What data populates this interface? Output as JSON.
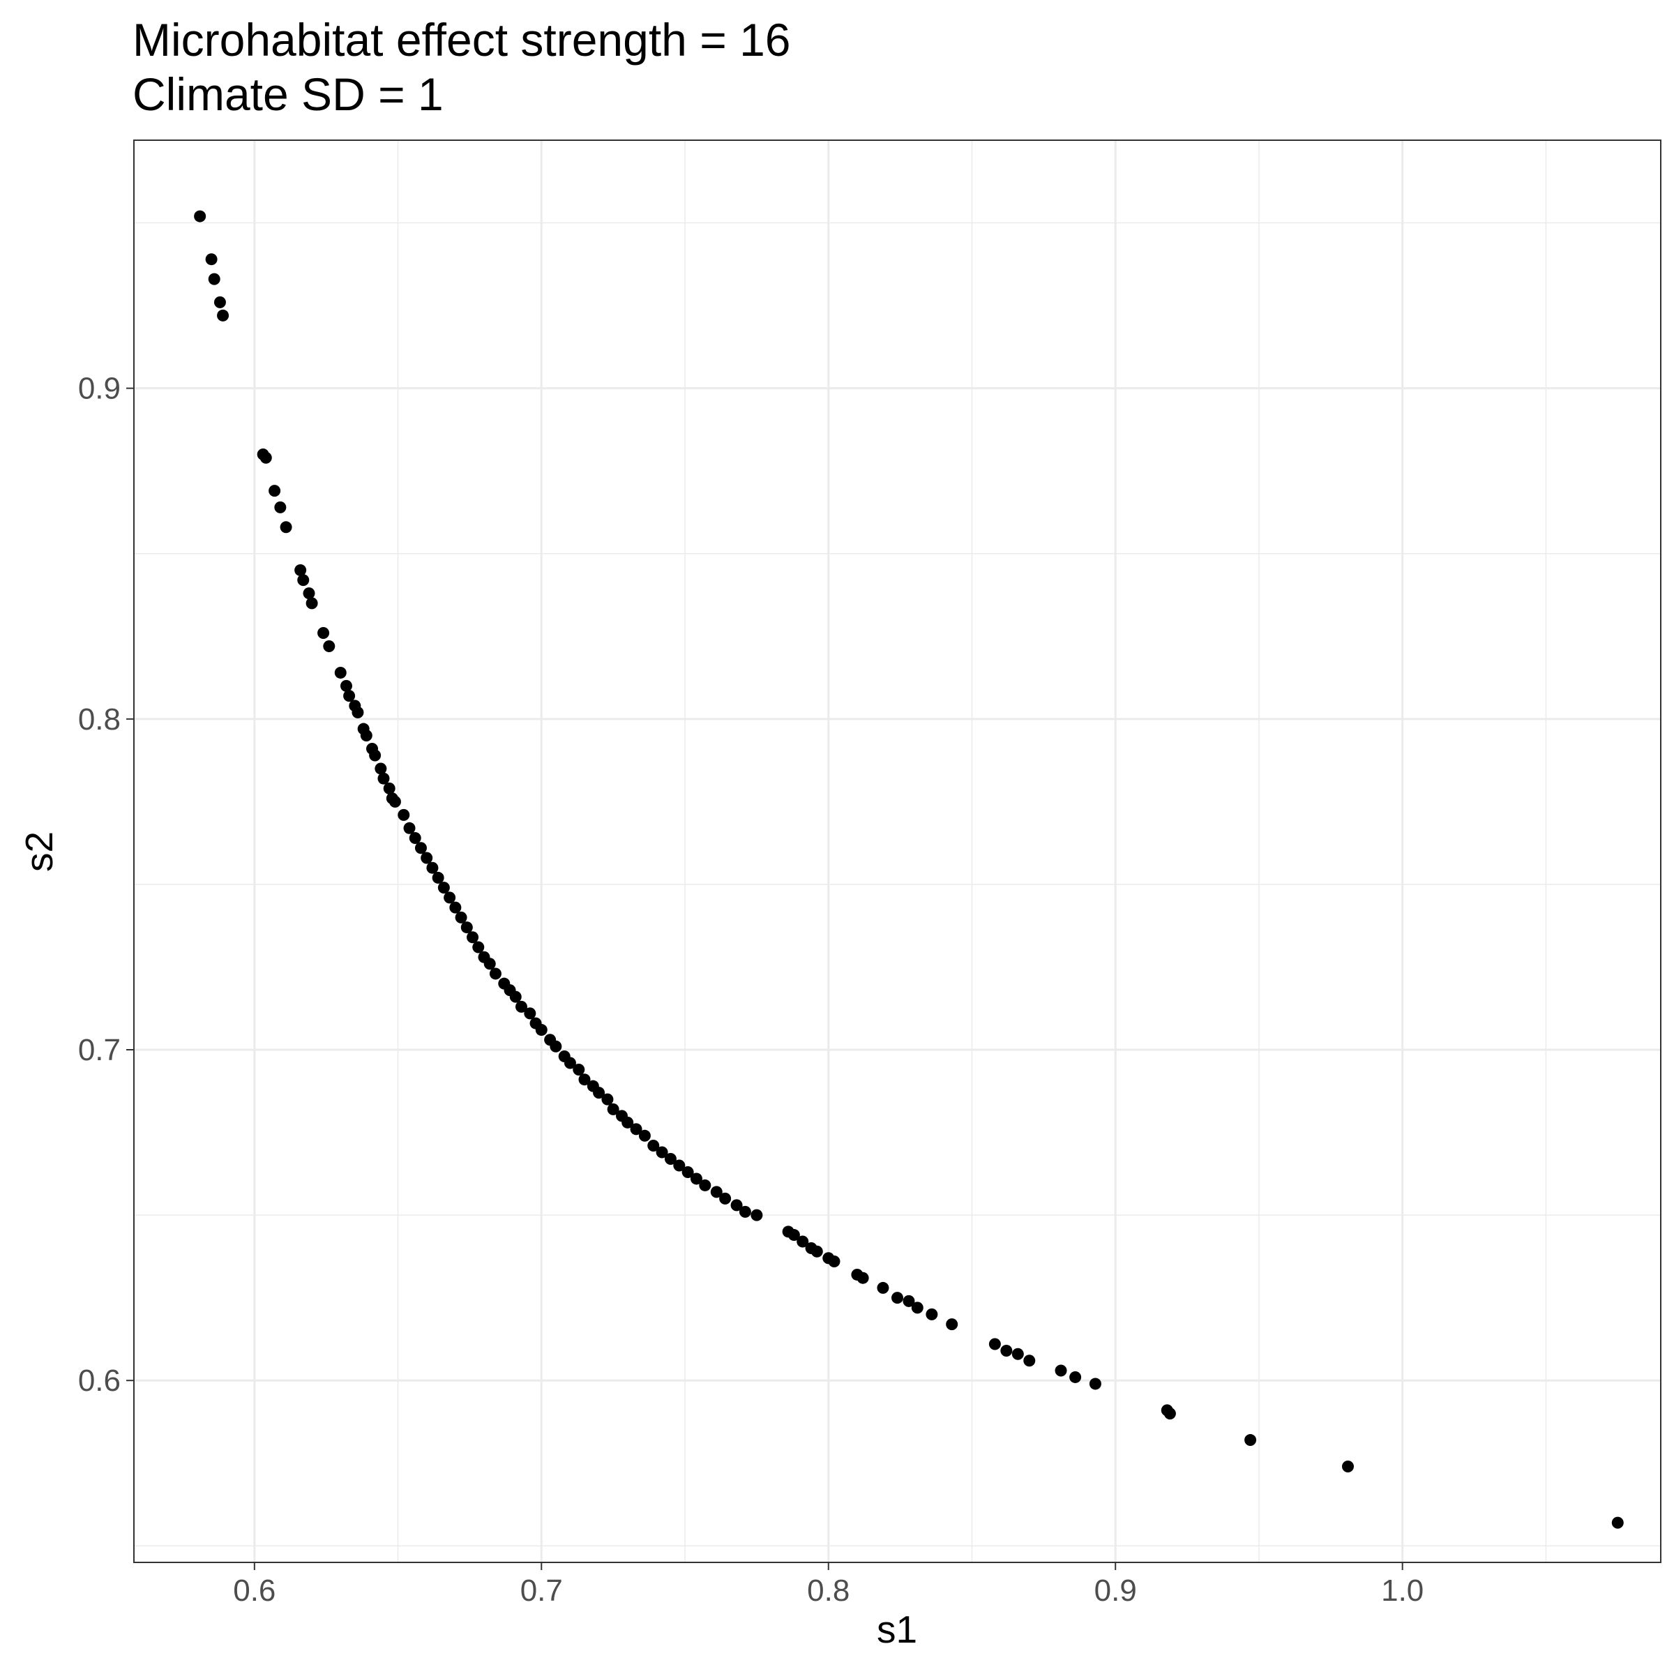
{
  "chart_data": {
    "type": "scatter",
    "title": "Microhabitat effect strength = 16",
    "subtitle": "Climate SD = 1",
    "xlabel": "s1",
    "ylabel": "s2",
    "xlim": [
      0.558,
      1.09
    ],
    "ylim": [
      0.545,
      0.975
    ],
    "x_ticks": [
      0.6,
      0.7,
      0.8,
      0.9,
      1.0
    ],
    "x_tick_labels": [
      "0.6",
      "0.7",
      "0.8",
      "0.9",
      "1.0"
    ],
    "y_ticks": [
      0.6,
      0.7,
      0.8,
      0.9
    ],
    "y_tick_labels": [
      "0.6",
      "0.7",
      "0.8",
      "0.9"
    ],
    "grid": true,
    "point_color": "#000000",
    "points": [
      [
        0.581,
        0.952
      ],
      [
        0.585,
        0.939
      ],
      [
        0.586,
        0.933
      ],
      [
        0.588,
        0.926
      ],
      [
        0.589,
        0.922
      ],
      [
        0.603,
        0.88
      ],
      [
        0.604,
        0.879
      ],
      [
        0.607,
        0.869
      ],
      [
        0.609,
        0.864
      ],
      [
        0.611,
        0.858
      ],
      [
        0.616,
        0.845
      ],
      [
        0.617,
        0.842
      ],
      [
        0.619,
        0.838
      ],
      [
        0.62,
        0.835
      ],
      [
        0.624,
        0.826
      ],
      [
        0.626,
        0.822
      ],
      [
        0.63,
        0.814
      ],
      [
        0.632,
        0.81
      ],
      [
        0.633,
        0.807
      ],
      [
        0.635,
        0.804
      ],
      [
        0.636,
        0.802
      ],
      [
        0.638,
        0.797
      ],
      [
        0.639,
        0.795
      ],
      [
        0.641,
        0.791
      ],
      [
        0.642,
        0.789
      ],
      [
        0.644,
        0.785
      ],
      [
        0.645,
        0.782
      ],
      [
        0.647,
        0.779
      ],
      [
        0.648,
        0.776
      ],
      [
        0.649,
        0.775
      ],
      [
        0.652,
        0.771
      ],
      [
        0.654,
        0.767
      ],
      [
        0.656,
        0.764
      ],
      [
        0.658,
        0.761
      ],
      [
        0.66,
        0.758
      ],
      [
        0.662,
        0.755
      ],
      [
        0.664,
        0.752
      ],
      [
        0.666,
        0.749
      ],
      [
        0.668,
        0.746
      ],
      [
        0.67,
        0.743
      ],
      [
        0.672,
        0.74
      ],
      [
        0.674,
        0.737
      ],
      [
        0.676,
        0.734
      ],
      [
        0.678,
        0.731
      ],
      [
        0.68,
        0.728
      ],
      [
        0.682,
        0.726
      ],
      [
        0.684,
        0.723
      ],
      [
        0.687,
        0.72
      ],
      [
        0.689,
        0.718
      ],
      [
        0.691,
        0.716
      ],
      [
        0.693,
        0.713
      ],
      [
        0.696,
        0.711
      ],
      [
        0.698,
        0.708
      ],
      [
        0.7,
        0.706
      ],
      [
        0.703,
        0.703
      ],
      [
        0.705,
        0.701
      ],
      [
        0.708,
        0.698
      ],
      [
        0.71,
        0.696
      ],
      [
        0.713,
        0.694
      ],
      [
        0.715,
        0.691
      ],
      [
        0.718,
        0.689
      ],
      [
        0.72,
        0.687
      ],
      [
        0.723,
        0.685
      ],
      [
        0.725,
        0.682
      ],
      [
        0.728,
        0.68
      ],
      [
        0.73,
        0.678
      ],
      [
        0.733,
        0.676
      ],
      [
        0.736,
        0.674
      ],
      [
        0.739,
        0.671
      ],
      [
        0.742,
        0.669
      ],
      [
        0.745,
        0.667
      ],
      [
        0.748,
        0.665
      ],
      [
        0.751,
        0.663
      ],
      [
        0.754,
        0.661
      ],
      [
        0.757,
        0.659
      ],
      [
        0.761,
        0.657
      ],
      [
        0.764,
        0.655
      ],
      [
        0.768,
        0.653
      ],
      [
        0.771,
        0.651
      ],
      [
        0.775,
        0.65
      ],
      [
        0.786,
        0.645
      ],
      [
        0.788,
        0.644
      ],
      [
        0.791,
        0.642
      ],
      [
        0.794,
        0.64
      ],
      [
        0.796,
        0.639
      ],
      [
        0.8,
        0.637
      ],
      [
        0.802,
        0.636
      ],
      [
        0.81,
        0.632
      ],
      [
        0.812,
        0.631
      ],
      [
        0.819,
        0.628
      ],
      [
        0.824,
        0.625
      ],
      [
        0.828,
        0.624
      ],
      [
        0.831,
        0.622
      ],
      [
        0.836,
        0.62
      ],
      [
        0.843,
        0.617
      ],
      [
        0.858,
        0.611
      ],
      [
        0.862,
        0.609
      ],
      [
        0.866,
        0.608
      ],
      [
        0.87,
        0.606
      ],
      [
        0.881,
        0.603
      ],
      [
        0.886,
        0.601
      ],
      [
        0.893,
        0.599
      ],
      [
        0.918,
        0.591
      ],
      [
        0.919,
        0.59
      ],
      [
        0.947,
        0.582
      ],
      [
        0.981,
        0.574
      ],
      [
        1.075,
        0.557
      ]
    ]
  }
}
